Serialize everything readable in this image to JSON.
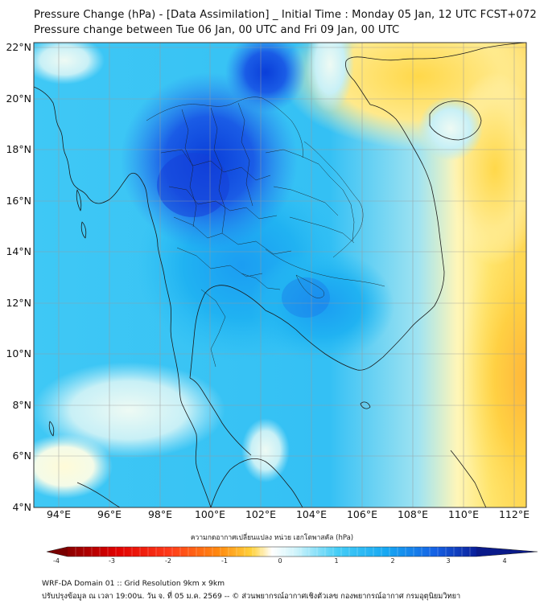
{
  "title_line1": "Pressure Change (hPa) - [Data Assimilation] _ Initial Time : Monday 05 Jan, 12 UTC FCST+072",
  "title_line2": "Pressure change between Tue 06 Jan, 00 UTC and Fri 09 Jan, 00 UTC",
  "lat_labels": [
    "22°N",
    "20°N",
    "18°N",
    "16°N",
    "14°N",
    "12°N",
    "10°N",
    "8°N",
    "6°N",
    "4°N"
  ],
  "lon_labels": [
    "94°E",
    "96°E",
    "98°E",
    "100°E",
    "102°E",
    "104°E",
    "106°E",
    "108°E",
    "110°E",
    "112°E"
  ],
  "colorbar_title": "ความกดอากาศเปลี่ยนแปลง หน่วย เฮกโตพาสคัล (hPa)",
  "colorbar_ticks": [
    "-4",
    "-3",
    "-2",
    "-1",
    "0",
    "1",
    "2",
    "3",
    "4"
  ],
  "footer_line1": "WRF-DA Domain 01 :: Grid Resolution 9km x 9km",
  "footer_line2": "ปรับปรุงข้อมูล ณ เวลา 19:00น. วัน จ. ที่ 05 ม.ค. 2569 -- © ส่วนพยากรณ์อากาศเชิงตัวเลข กองพยากรณ์อากาศ กรมอุตุนิยมวิทยา",
  "colors": {
    "frame": "#333333",
    "coast": "#1a1a1a",
    "grid": "#9a9a9a"
  }
}
